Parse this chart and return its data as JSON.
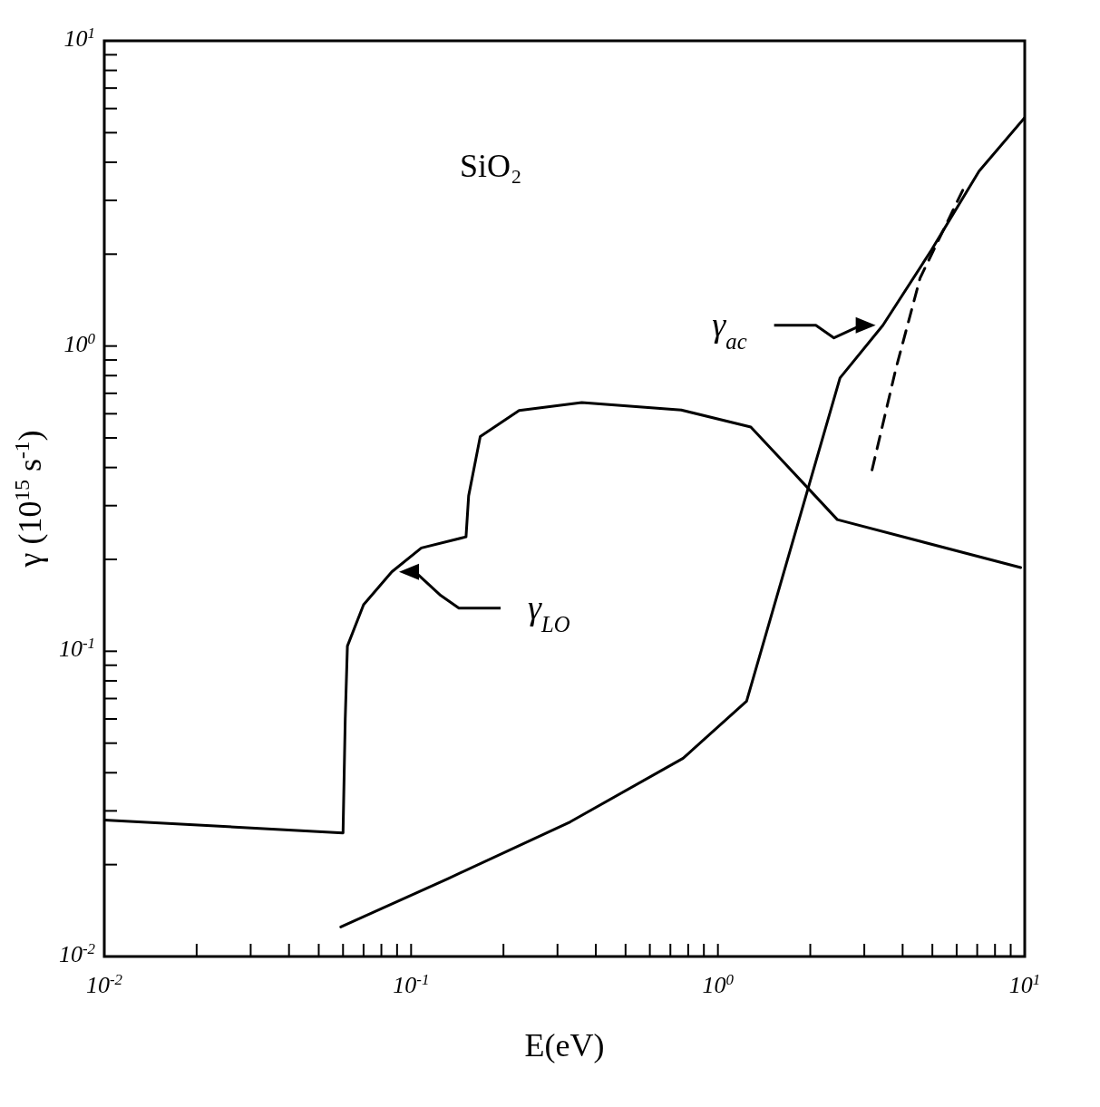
{
  "chart_data": {
    "type": "line",
    "xlabel": "E(eV)",
    "ylabel": "γ (10$^{15}$ s$^{-1}$)",
    "log": "xy",
    "grid": false,
    "marker": "none",
    "xlim": [
      0.01,
      10
    ],
    "ylim": [
      0.01,
      10
    ],
    "xticks": [
      {
        "value": 0.01,
        "label": "10$^{-2}$"
      },
      {
        "value": 0.02,
        "label": null
      },
      {
        "value": 0.03,
        "label": null
      },
      {
        "value": 0.04,
        "label": null
      },
      {
        "value": 0.05,
        "label": null
      },
      {
        "value": 0.06,
        "label": null
      },
      {
        "value": 0.07,
        "label": null
      },
      {
        "value": 0.08,
        "label": null
      },
      {
        "value": 0.09,
        "label": null
      },
      {
        "value": 0.1,
        "label": "10$^{-1}$"
      },
      {
        "value": 0.2,
        "label": null
      },
      {
        "value": 0.3,
        "label": null
      },
      {
        "value": 0.4,
        "label": null
      },
      {
        "value": 0.5,
        "label": null
      },
      {
        "value": 0.6,
        "label": null
      },
      {
        "value": 0.7,
        "label": null
      },
      {
        "value": 0.8,
        "label": null
      },
      {
        "value": 0.9,
        "label": null
      },
      {
        "value": 1,
        "label": "10$^{0}$"
      },
      {
        "value": 2,
        "label": null
      },
      {
        "value": 3,
        "label": null
      },
      {
        "value": 4,
        "label": null
      },
      {
        "value": 5,
        "label": null
      },
      {
        "value": 6,
        "label": null
      },
      {
        "value": 7,
        "label": null
      },
      {
        "value": 8,
        "label": null
      },
      {
        "value": 9,
        "label": null
      },
      {
        "value": 10,
        "label": "10$^{1}$"
      }
    ],
    "yticks": [
      {
        "value": 0.01,
        "label": "10$^{-2}$"
      },
      {
        "value": 0.02,
        "label": null
      },
      {
        "value": 0.03,
        "label": null
      },
      {
        "value": 0.04,
        "label": null
      },
      {
        "value": 0.05,
        "label": null
      },
      {
        "value": 0.06,
        "label": null
      },
      {
        "value": 0.07,
        "label": null
      },
      {
        "value": 0.08,
        "label": null
      },
      {
        "value": 0.09,
        "label": null
      },
      {
        "value": 0.1,
        "label": "10$^{-1}$"
      },
      {
        "value": 0.2,
        "label": null
      },
      {
        "value": 0.3,
        "label": null
      },
      {
        "value": 0.4,
        "label": null
      },
      {
        "value": 0.5,
        "label": null
      },
      {
        "value": 0.6,
        "label": null
      },
      {
        "value": 0.7,
        "label": null
      },
      {
        "value": 0.8,
        "label": null
      },
      {
        "value": 0.9,
        "label": null
      },
      {
        "value": 1,
        "label": "10$^{0}$"
      },
      {
        "value": 2,
        "label": null
      },
      {
        "value": 3,
        "label": null
      },
      {
        "value": 4,
        "label": null
      },
      {
        "value": 5,
        "label": null
      },
      {
        "value": 6,
        "label": null
      },
      {
        "value": 7,
        "label": null
      },
      {
        "value": 8,
        "label": null
      },
      {
        "value": 9,
        "label": null
      },
      {
        "value": 10,
        "label": "10$^{1}$"
      }
    ],
    "series": [
      {
        "color": "#000000",
        "line_style": "solid",
        "x": [
          0.01,
          0.06,
          0.061,
          0.062,
          0.07,
          0.0865,
          0.108,
          0.151,
          0.154,
          0.168,
          0.225,
          0.36,
          0.76,
          1.28,
          2.0,
          2.45,
          9.7
        ],
        "values": [
          0.028,
          0.0254,
          0.06,
          0.104,
          0.142,
          0.182,
          0.218,
          0.237,
          0.323,
          0.505,
          0.615,
          0.653,
          0.617,
          0.543,
          0.336,
          0.27,
          0.188
        ]
      },
      {
        "color": "#000000",
        "line_style": "solid",
        "x": [
          0.059,
          0.132,
          0.33,
          0.77,
          1.24,
          2.5,
          3.45,
          4.96,
          7.1,
          10
        ],
        "values": [
          0.0125,
          0.018,
          0.0276,
          0.0446,
          0.0686,
          0.786,
          1.17,
          2.06,
          3.74,
          5.6
        ]
      },
      {
        "color": "#000000",
        "line_style": "dashed",
        "x": [
          3.18,
          3.8,
          4.56,
          6.28
        ],
        "values": [
          0.393,
          0.84,
          1.67,
          3.24
        ]
      }
    ],
    "annotations": [
      "SiO₂",
      "γ$_{LO}$",
      "γ$_{ac}$"
    ]
  }
}
